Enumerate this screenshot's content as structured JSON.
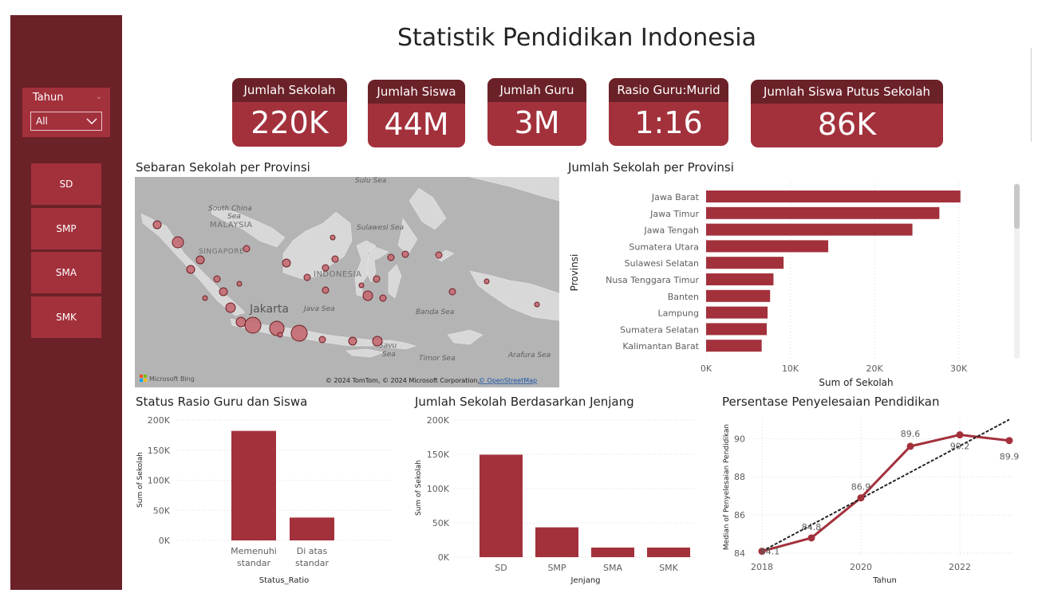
{
  "title": "Statistik Pendidikan Indonesia",
  "slicer": {
    "label": "Tahun",
    "value": "All"
  },
  "jenjang_buttons": [
    "SD",
    "SMP",
    "SMA",
    "SMK"
  ],
  "cards": [
    {
      "label": "Jumlah Sekolah",
      "value": "220K"
    },
    {
      "label": "Jumlah Siswa",
      "value": "44M"
    },
    {
      "label": "Jumlah Guru",
      "value": "3M"
    },
    {
      "label": "Rasio Guru:Murid",
      "value": "1:16"
    },
    {
      "label": "Jumlah Siswa Putus Sekolah",
      "value": "86K"
    }
  ],
  "map": {
    "title": "Sebaran Sekolah per Provinsi",
    "labels": [
      "Sulu Sea",
      "South China",
      "Sea",
      "MALAYSIA",
      "SINGAPORE",
      "Sulawesi Sea",
      "INDONESIA",
      "Jakarta",
      "Java Sea",
      "Banda Sea",
      "Timor Sea",
      "Arafura Sea",
      "Savu",
      "Sea"
    ],
    "brand": "Microsoft Bing",
    "copyright": "© 2024 TomTom, © 2024 Microsoft Corporation, ",
    "osm": "© OpenStreetMap"
  },
  "colors": {
    "primary": "#a3313c",
    "dark": "#6b2128",
    "bubble": "#c56a72",
    "bubble_stroke": "#6b1e25"
  },
  "chart_data": [
    {
      "id": "provinsi",
      "type": "bar",
      "orientation": "horizontal",
      "title": "Jumlah Sekolah per Provinsi",
      "categories": [
        "Jawa Barat",
        "Jawa Timur",
        "Jawa Tengah",
        "Sumatera Utara",
        "Sulawesi Selatan",
        "Nusa Tenggara Timur",
        "Banten",
        "Lampung",
        "Sumatera Selatan",
        "Kalimantan Barat"
      ],
      "values": [
        30200,
        27700,
        24500,
        14500,
        9200,
        8000,
        7600,
        7300,
        7200,
        6600
      ],
      "xlabel": "Sum of Sekolah",
      "ylabel": "Provinsi",
      "xticks": [
        0,
        10000,
        20000,
        30000
      ],
      "xtick_labels": [
        "0K",
        "10K",
        "20K",
        "30K"
      ],
      "xlim": [
        0,
        36000
      ]
    },
    {
      "id": "rasio",
      "type": "bar",
      "title": "Status Rasio Guru dan Siswa",
      "categories": [
        "Memenuhi standar",
        "Di atas standar"
      ],
      "category_lines": [
        [
          "Memenuhi",
          "standar"
        ],
        [
          "Di atas",
          "standar"
        ]
      ],
      "values": [
        182000,
        38000
      ],
      "xlabel": "Status_Ratio",
      "ylabel": "Sum of Sekolah",
      "yticks": [
        0,
        50000,
        100000,
        150000,
        200000
      ],
      "ytick_labels": [
        "0K",
        "50K",
        "100K",
        "150K",
        "200K"
      ],
      "ylim": [
        0,
        200000
      ]
    },
    {
      "id": "jenjang",
      "type": "bar",
      "title": "Jumlah Sekolah Berdasarkan Jenjang",
      "categories": [
        "SD",
        "SMP",
        "SMA",
        "SMK"
      ],
      "values": [
        149500,
        43500,
        14000,
        14000
      ],
      "xlabel": "Jenjang",
      "ylabel": "Sum of Sekolah",
      "yticks": [
        0,
        50000,
        100000,
        150000,
        200000
      ],
      "ytick_labels": [
        "0K",
        "50K",
        "100K",
        "150K",
        "200K"
      ],
      "ylim": [
        0,
        200000
      ]
    },
    {
      "id": "penyelesaian",
      "type": "line",
      "title": "Persentase Penyelesaian Pendidikan",
      "x": [
        2018,
        2019,
        2020,
        2021,
        2022,
        2023
      ],
      "values": [
        84.1,
        84.8,
        86.9,
        89.6,
        90.2,
        89.9
      ],
      "data_labels": [
        "84.1",
        "84.8",
        "86.9",
        "89.6",
        "90.2",
        "89.9"
      ],
      "trend_start": 84.1,
      "trend_end": 91.0,
      "xlabel": "Tahun",
      "ylabel": "Median of Penyelesaian Pendidikan",
      "xticks": [
        2018,
        2020,
        2022
      ],
      "xtick_labels": [
        "2018",
        "2020",
        "2022"
      ],
      "yticks": [
        84,
        86,
        88,
        90
      ],
      "ytick_labels": [
        "84",
        "86",
        "88",
        "90"
      ],
      "xlim": [
        2018,
        2023
      ],
      "ylim": [
        84,
        91.1
      ]
    }
  ]
}
